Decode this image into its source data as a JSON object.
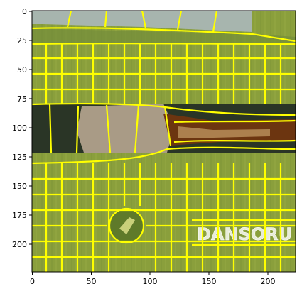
{
  "image": {
    "description_tags": [
      "superpixel-segmentation",
      "yellow-boundaries"
    ],
    "watermark_text": "DANSORU"
  },
  "axes": {
    "x_ticks": [
      "0",
      "50",
      "100",
      "150",
      "200"
    ],
    "y_ticks": [
      "0",
      "25",
      "50",
      "75",
      "100",
      "125",
      "150",
      "175",
      "200"
    ],
    "x_range": [
      -0.5,
      223.5
    ],
    "y_range": [
      223.5,
      -0.5
    ]
  },
  "colors": {
    "boundary": "#ffff00",
    "sky": "#9aa9a4",
    "band_dark": "#1f2a22",
    "ground": "#8a9f3c",
    "object_brown": "#7a3b12",
    "hand": "#b0a08a"
  }
}
